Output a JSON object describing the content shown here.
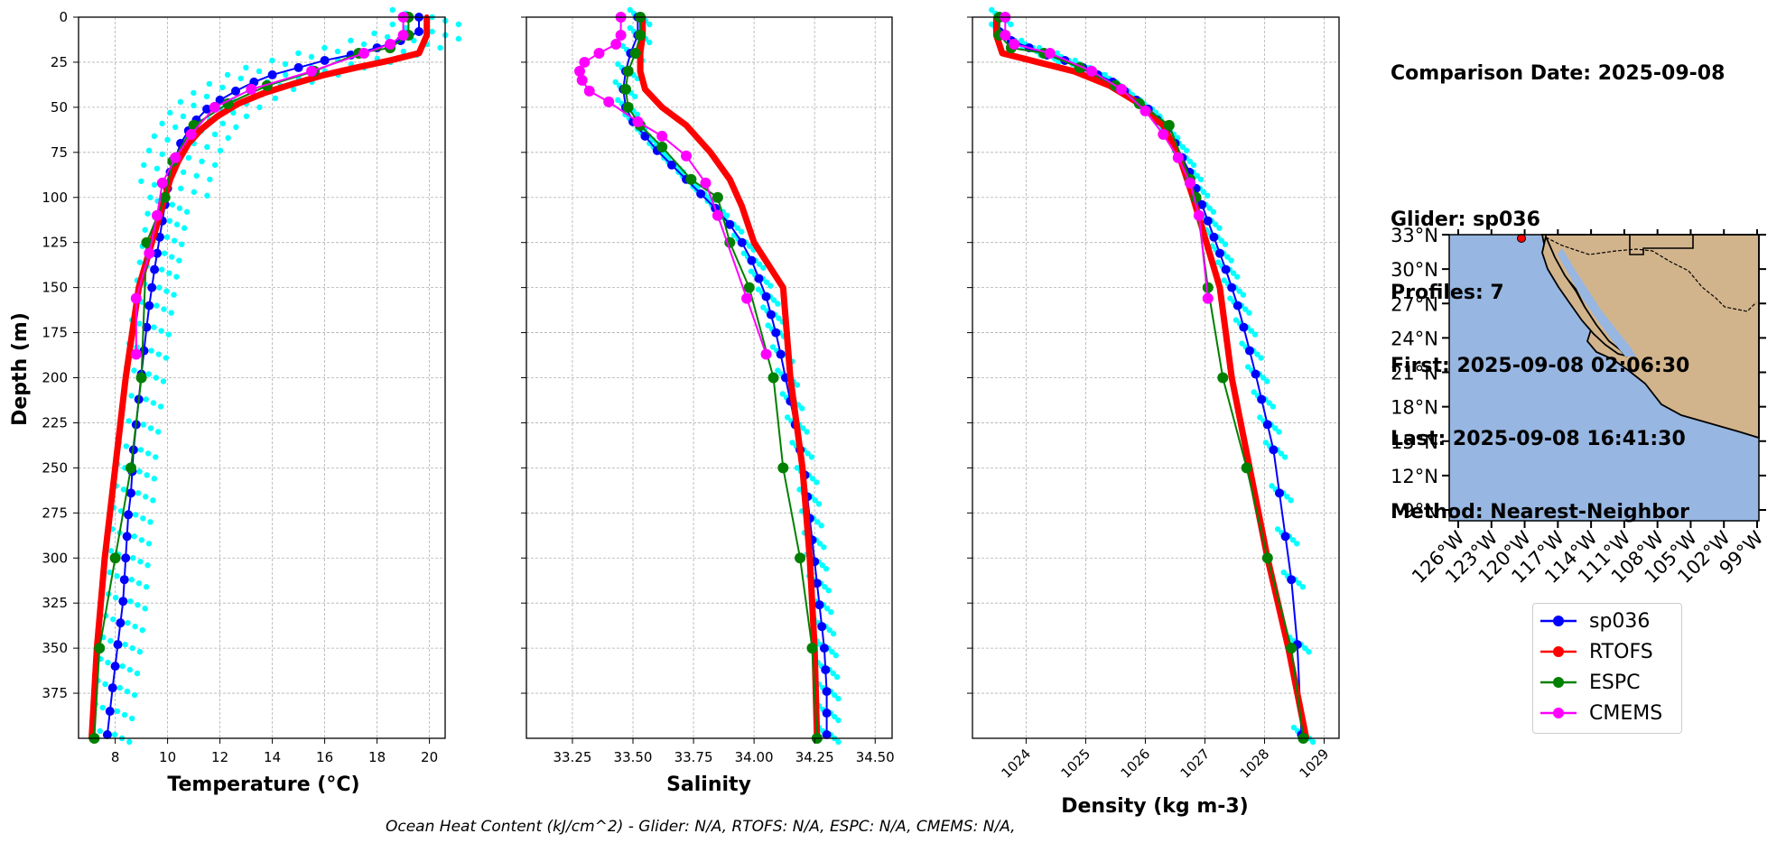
{
  "info": {
    "comparison_date": "Comparison Date: 2025-09-08",
    "glider": "Glider: sp036",
    "profiles": "Profiles: 7",
    "first": "First: 2025-09-08 02:06:30",
    "last": "Last: 2025-09-08 16:41:30",
    "method": "Method: Nearest-Neighbor"
  },
  "footer": "Ocean Heat Content (kJ/cm^2) - Glider: N/A,  RTOFS: N/A,  ESPC: N/A,  CMEMS: N/A,",
  "colors": {
    "sp036": "#0000ff",
    "RTOFS": "#ff0000",
    "ESPC": "#008000",
    "CMEMS": "#ff00ff",
    "raw": "#00ffff",
    "ocean": "#97b6e1",
    "land": "#d2b48c"
  },
  "legend": [
    {
      "name": "sp036",
      "color": "#0000ff"
    },
    {
      "name": "RTOFS",
      "color": "#ff0000"
    },
    {
      "name": "ESPC",
      "color": "#008000"
    },
    {
      "name": "CMEMS",
      "color": "#ff00ff"
    }
  ],
  "chart_data": [
    {
      "type": "line",
      "xlabel": "Temperature (°C)",
      "ylabel": "Depth (m)",
      "xlim": [
        6.6,
        20.6
      ],
      "ylim": [
        400,
        0
      ],
      "xticks": [
        "8",
        "10",
        "12",
        "14",
        "16",
        "18",
        "20"
      ],
      "xtick_values": [
        8,
        10,
        12,
        14,
        16,
        18,
        20
      ],
      "yticks": [
        "0",
        "25",
        "50",
        "75",
        "100",
        "125",
        "150",
        "175",
        "200",
        "225",
        "250",
        "275",
        "300",
        "325",
        "350",
        "375"
      ],
      "ytick_values": [
        0,
        25,
        50,
        75,
        100,
        125,
        150,
        175,
        200,
        225,
        250,
        275,
        300,
        325,
        350,
        375
      ],
      "grid": true,
      "series": [
        {
          "name": "sp036",
          "x": [
            19.6,
            19.6,
            18.9,
            18.0,
            17.0,
            16.0,
            15.0,
            14.0,
            13.3,
            12.6,
            12.0,
            11.5,
            11.1,
            10.8,
            10.5,
            10.3,
            10.1,
            10.0,
            9.9,
            9.8,
            9.7,
            9.6,
            9.5,
            9.4,
            9.3,
            9.2,
            9.1,
            9.0,
            8.9,
            8.8,
            8.7,
            8.65,
            8.6,
            8.5,
            8.45,
            8.4,
            8.35,
            8.3,
            8.2,
            8.1,
            8.0,
            7.9,
            7.8,
            7.7
          ],
          "y": [
            0,
            8,
            13,
            17,
            21,
            24,
            28,
            32,
            36,
            41,
            46,
            51,
            57,
            63,
            70,
            78,
            86,
            95,
            104,
            113,
            122,
            131,
            140,
            150,
            160,
            172,
            185,
            198,
            212,
            226,
            240,
            252,
            264,
            276,
            288,
            300,
            312,
            324,
            336,
            348,
            360,
            372,
            385,
            398
          ]
        },
        {
          "name": "RTOFS",
          "x": [
            19.9,
            19.9,
            19.6,
            18.5,
            17.2,
            16.0,
            14.8,
            13.7,
            12.7,
            11.9,
            11.3,
            10.8,
            10.4,
            10.1,
            9.9,
            8.9,
            8.4,
            8.0,
            7.6,
            7.3,
            7.1
          ],
          "y": [
            0,
            10,
            20,
            24,
            28,
            32,
            37,
            42,
            48,
            55,
            62,
            70,
            80,
            90,
            100,
            150,
            200,
            250,
            300,
            350,
            400
          ]
        },
        {
          "name": "ESPC",
          "x": [
            19.2,
            19.2,
            18.5,
            17.3,
            15.6,
            13.8,
            12.3,
            11.0,
            10.2,
            9.9,
            9.2,
            9.0,
            8.6,
            8.0,
            7.4,
            7.2
          ],
          "y": [
            0,
            10,
            17,
            20,
            30,
            38,
            48,
            60,
            80,
            100,
            125,
            200,
            250,
            300,
            350,
            400
          ]
        },
        {
          "name": "CMEMS",
          "x": [
            19.0,
            19.0,
            18.5,
            17.5,
            15.5,
            13.2,
            11.8,
            10.9,
            10.3,
            9.8,
            9.6,
            9.3,
            8.8,
            8.8
          ],
          "y": [
            0,
            10,
            15,
            20,
            30,
            40,
            50,
            65,
            78,
            92,
            110,
            131,
            156,
            187
          ]
        }
      ]
    },
    {
      "type": "line",
      "xlabel": "Salinity",
      "ylabel": "",
      "xlim": [
        33.06,
        34.57
      ],
      "ylim": [
        400,
        0
      ],
      "xticks": [
        "33.25",
        "33.50",
        "33.75",
        "34.00",
        "34.25",
        "34.50"
      ],
      "xtick_values": [
        33.25,
        33.5,
        33.75,
        34.0,
        34.25,
        34.5
      ],
      "grid": true,
      "series": [
        {
          "name": "sp036",
          "x": [
            33.52,
            33.52,
            33.49,
            33.47,
            33.46,
            33.47,
            33.5,
            33.55,
            33.6,
            33.66,
            33.72,
            33.78,
            33.84,
            33.9,
            33.95,
            33.99,
            34.02,
            34.05,
            34.07,
            34.09,
            34.11,
            34.13,
            34.15,
            34.17,
            34.19,
            34.21,
            34.22,
            34.23,
            34.24,
            34.25,
            34.26,
            34.27,
            34.28,
            34.29,
            34.295,
            34.3,
            34.3,
            34.3
          ],
          "y": [
            0,
            10,
            20,
            30,
            40,
            50,
            58,
            66,
            74,
            82,
            90,
            98,
            106,
            115,
            125,
            135,
            145,
            155,
            165,
            175,
            187,
            200,
            213,
            226,
            240,
            254,
            266,
            278,
            290,
            302,
            314,
            326,
            338,
            350,
            362,
            374,
            386,
            398
          ]
        },
        {
          "name": "RTOFS",
          "x": [
            33.54,
            33.54,
            33.53,
            33.53,
            33.55,
            33.62,
            33.72,
            33.82,
            33.9,
            33.95,
            34.0,
            34.12,
            34.15,
            34.2,
            34.23,
            34.25,
            34.26
          ],
          "y": [
            0,
            10,
            20,
            30,
            40,
            50,
            60,
            75,
            90,
            105,
            125,
            150,
            200,
            250,
            300,
            350,
            400
          ]
        },
        {
          "name": "ESPC",
          "x": [
            33.53,
            33.53,
            33.51,
            33.48,
            33.47,
            33.48,
            33.53,
            33.62,
            33.74,
            33.85,
            33.9,
            33.98,
            34.08,
            34.12,
            34.19,
            34.24,
            34.26
          ],
          "y": [
            0,
            10,
            20,
            30,
            40,
            50,
            60,
            72,
            90,
            100,
            125,
            150,
            200,
            250,
            300,
            350,
            400
          ]
        },
        {
          "name": "CMEMS",
          "x": [
            33.45,
            33.45,
            33.43,
            33.36,
            33.3,
            33.28,
            33.29,
            33.32,
            33.4,
            33.52,
            33.62,
            33.72,
            33.8,
            33.85,
            33.97,
            34.05
          ],
          "y": [
            0,
            10,
            15,
            20,
            25,
            30,
            35,
            41,
            47,
            58,
            66,
            77,
            92,
            110,
            156,
            187
          ]
        }
      ]
    },
    {
      "type": "line",
      "xlabel": "Density (kg m-3)",
      "ylabel": "",
      "xlim": [
        1023.1,
        1029.25
      ],
      "ylim": [
        400,
        0
      ],
      "xticks": [
        "1024",
        "1025",
        "1026",
        "1027",
        "1028",
        "1029"
      ],
      "xtick_values": [
        1024,
        1025,
        1026,
        1027,
        1028,
        1029
      ],
      "grid": true,
      "series": [
        {
          "name": "sp036",
          "x": [
            1023.55,
            1023.55,
            1023.75,
            1024.05,
            1024.35,
            1024.65,
            1024.95,
            1025.2,
            1025.45,
            1025.65,
            1025.85,
            1026.05,
            1026.2,
            1026.35,
            1026.5,
            1026.62,
            1026.74,
            1026.85,
            1026.95,
            1027.05,
            1027.15,
            1027.25,
            1027.35,
            1027.45,
            1027.55,
            1027.65,
            1027.75,
            1027.85,
            1027.95,
            1028.05,
            1028.15,
            1028.25,
            1028.35,
            1028.45,
            1028.55,
            1028.62
          ],
          "y": [
            0,
            8,
            13,
            17,
            21,
            24,
            28,
            32,
            36,
            41,
            46,
            51,
            57,
            63,
            70,
            78,
            86,
            95,
            104,
            113,
            122,
            131,
            140,
            150,
            160,
            172,
            185,
            198,
            212,
            226,
            240,
            264,
            288,
            312,
            348,
            398
          ]
        },
        {
          "name": "RTOFS",
          "x": [
            1023.5,
            1023.5,
            1023.6,
            1024.2,
            1024.8,
            1025.4,
            1025.9,
            1026.3,
            1026.6,
            1026.8,
            1027.25,
            1027.45,
            1027.75,
            1028.05,
            1028.4,
            1028.7
          ],
          "y": [
            0,
            10,
            20,
            25,
            30,
            38,
            48,
            60,
            80,
            100,
            150,
            200,
            250,
            300,
            350,
            400
          ]
        },
        {
          "name": "ESPC",
          "x": [
            1023.55,
            1023.55,
            1023.75,
            1024.3,
            1024.9,
            1025.5,
            1025.9,
            1026.4,
            1026.75,
            1026.85,
            1027.05,
            1027.3,
            1027.7,
            1028.05,
            1028.45,
            1028.65
          ],
          "y": [
            0,
            10,
            17,
            20,
            28,
            38,
            48,
            60,
            90,
            100,
            150,
            200,
            250,
            300,
            350,
            400
          ]
        },
        {
          "name": "CMEMS",
          "x": [
            1023.65,
            1023.65,
            1023.8,
            1024.4,
            1025.1,
            1025.6,
            1026.0,
            1026.3,
            1026.55,
            1026.75,
            1026.9,
            1027.05
          ],
          "y": [
            0,
            10,
            15,
            20,
            30,
            40,
            52,
            65,
            78,
            92,
            110,
            156
          ]
        }
      ]
    }
  ],
  "map": {
    "lat_ticks": [
      "33°N",
      "30°N",
      "27°N",
      "24°N",
      "21°N",
      "18°N",
      "15°N",
      "12°N",
      "9°N"
    ],
    "lon_ticks": [
      "126°W",
      "123°W",
      "120°W",
      "117°W",
      "114°W",
      "111°W",
      "108°W",
      "105°W",
      "102°W",
      "99°W"
    ]
  }
}
